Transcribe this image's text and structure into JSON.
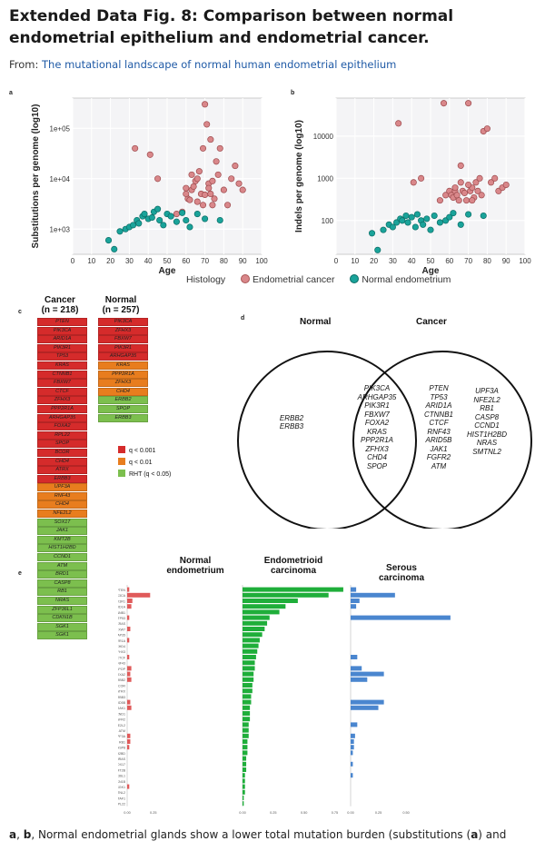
{
  "header": {
    "title": "Extended Data Fig. 8: Comparison between normal endometrial epithelium and endometrial cancer.",
    "from_prefix": "From: ",
    "from_link": "The mutational landscape of normal human endometrial epithelium"
  },
  "panel_labels": {
    "a": "a",
    "b": "b",
    "c": "c",
    "d": "d",
    "e": "e"
  },
  "colors": {
    "cancer": "#d9878a",
    "normal": "#1aa39a",
    "red": "#d52b2b",
    "orange": "#e87d1e",
    "green": "#7cbf4e",
    "venn_green": "#1fae3a",
    "bar_red": "#e05a5a",
    "bar_blue": "#4a86cf"
  },
  "chart_data": [
    {
      "type": "scatter",
      "title": "a",
      "xlabel": "Age",
      "ylabel": "Substitutions per genome (log10)",
      "xlim": [
        0,
        100
      ],
      "xticks": [
        "0",
        "10",
        "20",
        "30",
        "40",
        "50",
        "60",
        "70",
        "80",
        "90",
        "100"
      ],
      "yticks": [
        "1e+03",
        "1e+04",
        "1e+05"
      ],
      "yscale": "log",
      "ylim_log": [
        2.5,
        5.6
      ],
      "series": [
        {
          "name": "Endometrial cancer",
          "points": [
            [
              33,
              40000
            ],
            [
              41,
              30000
            ],
            [
              45,
              10000
            ],
            [
              55,
              2000
            ],
            [
              58,
              2200
            ],
            [
              60,
              6500
            ],
            [
              61,
              4000
            ],
            [
              62,
              3800
            ],
            [
              63,
              12000
            ],
            [
              63,
              6000
            ],
            [
              64,
              7000
            ],
            [
              65,
              9000
            ],
            [
              66,
              10000
            ],
            [
              67,
              14000
            ],
            [
              68,
              5000
            ],
            [
              69,
              40000
            ],
            [
              69,
              3000
            ],
            [
              70,
              300000
            ],
            [
              71,
              120000
            ],
            [
              72,
              8000
            ],
            [
              73,
              60000
            ],
            [
              73,
              5000
            ],
            [
              74,
              9000
            ],
            [
              75,
              4000
            ],
            [
              76,
              22000
            ],
            [
              77,
              12000
            ],
            [
              78,
              40000
            ],
            [
              80,
              6000
            ],
            [
              82,
              3000
            ],
            [
              84,
              10000
            ],
            [
              86,
              18000
            ],
            [
              88,
              8000
            ],
            [
              90,
              6000
            ],
            [
              60,
              5000
            ],
            [
              66,
              3500
            ],
            [
              70,
              4800
            ],
            [
              72,
              6500
            ],
            [
              74,
              3000
            ]
          ]
        },
        {
          "name": "Normal endometrium",
          "points": [
            [
              19,
              600
            ],
            [
              22,
              400
            ],
            [
              25,
              900
            ],
            [
              28,
              1000
            ],
            [
              30,
              1100
            ],
            [
              32,
              1200
            ],
            [
              34,
              1500
            ],
            [
              35,
              1300
            ],
            [
              37,
              1800
            ],
            [
              38,
              2000
            ],
            [
              40,
              1600
            ],
            [
              42,
              1700
            ],
            [
              43,
              2200
            ],
            [
              45,
              2500
            ],
            [
              46,
              1500
            ],
            [
              48,
              1200
            ],
            [
              50,
              2000
            ],
            [
              52,
              1800
            ],
            [
              55,
              1400
            ],
            [
              58,
              2100
            ],
            [
              60,
              1500
            ],
            [
              62,
              1100
            ],
            [
              66,
              2000
            ],
            [
              70,
              1600
            ],
            [
              78,
              1500
            ]
          ]
        }
      ],
      "legend_title": "Histology"
    },
    {
      "type": "scatter",
      "title": "b",
      "xlabel": "Age",
      "ylabel": "Indels per genome (log10)",
      "xlim": [
        0,
        100
      ],
      "xticks": [
        "0",
        "10",
        "20",
        "30",
        "40",
        "50",
        "60",
        "70",
        "80",
        "90",
        "100"
      ],
      "yticks": [
        "100",
        "1000",
        "10000"
      ],
      "yscale": "log",
      "ylim_log": [
        1.2,
        4.9
      ],
      "series": [
        {
          "name": "Endometrial cancer",
          "points": [
            [
              33,
              20000
            ],
            [
              41,
              800
            ],
            [
              45,
              1000
            ],
            [
              55,
              300
            ],
            [
              58,
              400
            ],
            [
              60,
              500
            ],
            [
              61,
              400
            ],
            [
              62,
              350
            ],
            [
              63,
              500
            ],
            [
              63,
              600
            ],
            [
              64,
              400
            ],
            [
              65,
              300
            ],
            [
              66,
              800
            ],
            [
              67,
              500
            ],
            [
              68,
              450
            ],
            [
              69,
              300
            ],
            [
              70,
              60000
            ],
            [
              71,
              500
            ],
            [
              72,
              600
            ],
            [
              73,
              350
            ],
            [
              74,
              800
            ],
            [
              75,
              500
            ],
            [
              76,
              1000
            ],
            [
              77,
              400
            ],
            [
              78,
              13000
            ],
            [
              80,
              15000
            ],
            [
              82,
              800
            ],
            [
              84,
              1000
            ],
            [
              86,
              500
            ],
            [
              88,
              600
            ],
            [
              90,
              700
            ],
            [
              57,
              60000
            ],
            [
              66,
              2000
            ],
            [
              70,
              700
            ],
            [
              72,
              300
            ]
          ]
        },
        {
          "name": "Normal endometrium",
          "points": [
            [
              19,
              50
            ],
            [
              22,
              20
            ],
            [
              25,
              60
            ],
            [
              28,
              80
            ],
            [
              30,
              70
            ],
            [
              32,
              90
            ],
            [
              34,
              110
            ],
            [
              35,
              100
            ],
            [
              37,
              130
            ],
            [
              38,
              90
            ],
            [
              40,
              120
            ],
            [
              42,
              70
            ],
            [
              43,
              140
            ],
            [
              45,
              100
            ],
            [
              46,
              80
            ],
            [
              48,
              110
            ],
            [
              50,
              60
            ],
            [
              52,
              130
            ],
            [
              55,
              90
            ],
            [
              58,
              100
            ],
            [
              60,
              120
            ],
            [
              62,
              150
            ],
            [
              66,
              80
            ],
            [
              70,
              140
            ],
            [
              78,
              130
            ]
          ]
        }
      ]
    },
    {
      "type": "bar",
      "title": "e",
      "panels": [
        {
          "name": "Normal endometrium",
          "values": [
            0.02,
            0.22,
            0.05,
            0.04,
            0,
            0.02,
            0,
            0.03,
            0,
            0.02,
            0,
            0,
            0.02,
            0,
            0.04,
            0.03,
            0.04,
            0,
            0,
            0,
            0.03,
            0.04,
            0,
            0,
            0,
            0,
            0.03,
            0.03,
            0.02,
            0,
            0,
            0,
            0,
            0,
            0,
            0.02,
            0,
            0,
            0
          ]
        },
        {
          "name": "Endometrioid carcinoma",
          "values": [
            0.82,
            0.7,
            0.45,
            0.35,
            0.3,
            0.22,
            0.2,
            0.18,
            0.16,
            0.14,
            0.13,
            0.12,
            0.11,
            0.1,
            0.1,
            0.09,
            0.09,
            0.08,
            0.08,
            0.07,
            0.07,
            0.06,
            0.06,
            0.06,
            0.05,
            0.05,
            0.05,
            0.04,
            0.04,
            0.04,
            0.03,
            0.03,
            0.03,
            0.02,
            0.02,
            0.02,
            0.02,
            0.01,
            0.01
          ]
        },
        {
          "name": "Serous carcinoma",
          "values": [
            0.05,
            0.4,
            0.08,
            0.05,
            0,
            0.9,
            0,
            0,
            0,
            0,
            0,
            0,
            0.06,
            0,
            0.1,
            0.3,
            0.15,
            0,
            0,
            0,
            0.3,
            0.25,
            0,
            0,
            0.06,
            0,
            0.04,
            0.03,
            0.03,
            0.02,
            0,
            0.02,
            0,
            0.02,
            0,
            0,
            0,
            0,
            0
          ]
        }
      ]
    }
  ],
  "panel_a": {
    "ylabel": "Substitutions per genome (log10)",
    "xlabel": "Age"
  },
  "panel_b": {
    "ylabel": "Indels per genome (log10)",
    "xlabel": "Age"
  },
  "legend": {
    "title": "Histology",
    "cancer": "Endometrial cancer",
    "normal": "Normal endometrium"
  },
  "panel_c": {
    "cancer_title": "Cancer",
    "cancer_n": "(n = 218)",
    "normal_title": "Normal",
    "normal_n": "(n = 257)",
    "cancer_cells": [
      "PTEN",
      "PIK3CA",
      "ARID1A",
      "PIK3R1",
      "TP53",
      "KRAS",
      "CTNNB1",
      "FBXW7",
      "CTCF",
      "ZFHX3",
      "PPP2R1A",
      "ARHGAP35",
      "FOXA2",
      "RPL22",
      "SPOP",
      "BCOR",
      "CHD4",
      "ATRX",
      "ERBB3",
      "UPF3A",
      "RNF43",
      "CHD4",
      "NFE2L2",
      "SOX17",
      "JAK1",
      "KMT2B",
      "HIST1H2BD",
      "CCND1",
      "ATM",
      "BRD1",
      "CASP8",
      "RB1",
      "NRAS",
      "ZFP36L1",
      "CDKN1B",
      "SGK1",
      "SGK1"
    ],
    "cancer_colors": [
      "r",
      "r",
      "r",
      "r",
      "r",
      "r",
      "r",
      "r",
      "r",
      "r",
      "r",
      "r",
      "r",
      "r",
      "r",
      "r",
      "r",
      "r",
      "r",
      "o",
      "o",
      "o",
      "o",
      "g",
      "g",
      "g",
      "g",
      "g",
      "g",
      "g",
      "g",
      "g",
      "g",
      "g",
      "g",
      "g",
      "g"
    ],
    "normal_cells": [
      "PIK3CA",
      "ZFHX3",
      "FBXW7",
      "PIK3R1",
      "ARHGAP35",
      "KRAS",
      "PPP2R1A",
      "ZFHX3",
      "CHD4",
      "ERBB2",
      "SPOP",
      "ERBB3"
    ],
    "normal_colors": [
      "r",
      "r",
      "r",
      "r",
      "r",
      "o",
      "o",
      "o",
      "o",
      "g",
      "g",
      "g"
    ],
    "legend": [
      "q < 0.001",
      "q < 0.01",
      "RHT (q < 0.05)"
    ]
  },
  "panel_d": {
    "normal_title": "Normal",
    "cancer_title": "Cancer",
    "normal_only": [
      "ERBB2",
      "ERBB3"
    ],
    "shared": [
      "PIK3CA",
      "ARHGAP35",
      "PIK3R1",
      "FBXW7",
      "FOXA2",
      "KRAS",
      "PPP2R1A",
      "ZFHX3",
      "CHD4",
      "SPOP"
    ],
    "cancer_only_1": [
      "PTEN",
      "TP53",
      "ARID1A",
      "CTNNB1",
      "CTCF",
      "RNF43",
      "ARID5B",
      "JAK1",
      "FGFR2",
      "ATM"
    ],
    "cancer_only_2": [
      "UPF3A",
      "NFE2L2",
      "RB1",
      "CASP8",
      "CCND1",
      "HIST1H2BD",
      "NRAS",
      "SMTNL2"
    ]
  },
  "panel_e": {
    "normal_title": "Normal endometrium",
    "endo_title": "Endometrioid carcinoma",
    "serous_title": "Serous carcinoma",
    "genes": [
      "PTEN",
      "PIK3CA",
      "PIK3R1",
      "ARID1A",
      "CTNNB1",
      "TP53",
      "KRAS",
      "FBXW7",
      "ARHGAP35",
      "PPP2R1A",
      "CHD4",
      "ZFHX3",
      "CTCF",
      "RNF43",
      "SPOP",
      "FOXA2",
      "ERBB2",
      "BCOR",
      "ATRX",
      "ERBB3",
      "ARID5B",
      "JAK1",
      "CCND1",
      "FGFR2",
      "NFE2L2",
      "ATM",
      "UPF3A",
      "RB1",
      "CASP8",
      "HIST1H2BD",
      "NRAS",
      "SOX17",
      "KMT2B",
      "ZFP36L1",
      "CDKN1B",
      "SGK1",
      "SMTNL2",
      "TAF1",
      "RPL22"
    ],
    "normal_ticks": [
      "0.00",
      "0.25"
    ],
    "endo_ticks": [
      "0.00",
      "0.25",
      "0.50",
      "0.75"
    ],
    "serous_ticks": [
      "0.00",
      "0.25",
      "0.50"
    ]
  },
  "caption": {
    "text": ", Normal endometrial glands show a lower total mutation burden (substitutions (",
    "a": "a",
    "b": "b",
    "a2": "a",
    "tail": ") and"
  }
}
